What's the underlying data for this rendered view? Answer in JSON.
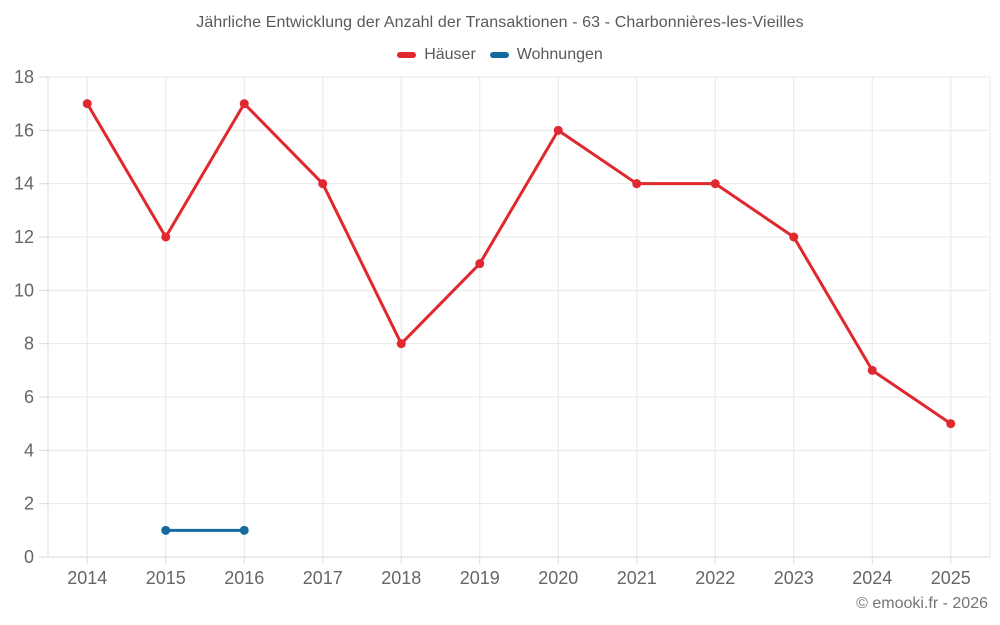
{
  "page": {
    "title": "Jährliche Entwicklung der Anzahl der Transaktionen - 63 - Charbonnières-les-Vieilles",
    "footer": "© emooki.fr - 2026"
  },
  "colors": {
    "hauser_red": "#e0282e",
    "wohnungen_blue": "#14699e",
    "grid": "#e8e8e8",
    "axis": "#d9d9d9",
    "tick_text": "#666666",
    "title_text": "#595959",
    "footer_text": "#757575"
  },
  "chart_data": {
    "type": "line",
    "title": "Jährliche Entwicklung der Anzahl der Transaktionen - 63 - Charbonnières-les-Vieilles",
    "categories": [
      "2014",
      "2015",
      "2016",
      "2017",
      "2018",
      "2019",
      "2020",
      "2021",
      "2022",
      "2023",
      "2024",
      "2025"
    ],
    "series": [
      {
        "key": "haeuser",
        "name": "Häuser",
        "color": "#e0282e",
        "values": [
          17,
          12,
          17,
          14,
          8,
          11,
          16,
          14,
          14,
          12,
          7,
          5
        ]
      },
      {
        "key": "wohnungen",
        "name": "Wohnungen",
        "color": "#14699e",
        "values": [
          null,
          1,
          1,
          null,
          null,
          null,
          null,
          null,
          null,
          null,
          null,
          null
        ]
      }
    ],
    "xlabel": "",
    "ylabel": "",
    "ylim": [
      0,
      18
    ],
    "yticks": [
      0,
      2,
      4,
      6,
      8,
      10,
      12,
      14,
      16,
      18
    ],
    "grid": true,
    "legend_position": "top"
  }
}
